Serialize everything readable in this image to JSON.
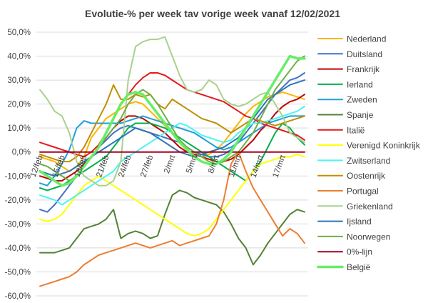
{
  "chart_data": {
    "type": "line",
    "title": "Evolutie-% per week tav vorige week vanaf 12/02/2021",
    "xlabel": "",
    "ylabel": "",
    "ylim": [
      -60,
      50
    ],
    "ytick_step": 10,
    "ytick_labels": [
      "50,0%",
      "40,0%",
      "30,0%",
      "20,0%",
      "10,0%",
      "0,0%",
      "-10,0%",
      "-20,0%",
      "-30,0%",
      "-40,0%",
      "-50,0%",
      "-60,0%"
    ],
    "x_count": 37,
    "x_ticks": [
      {
        "index": 0,
        "label": "12/feb"
      },
      {
        "index": 3,
        "label": "15/feb"
      },
      {
        "index": 6,
        "label": "18/feb"
      },
      {
        "index": 9,
        "label": "21/feb"
      },
      {
        "index": 12,
        "label": "24/feb"
      },
      {
        "index": 15,
        "label": "27/feb"
      },
      {
        "index": 18,
        "label": "2/mrt"
      },
      {
        "index": 21,
        "label": "5/mrt"
      },
      {
        "index": 24,
        "label": "8/mrt"
      },
      {
        "index": 27,
        "label": "11/mrt"
      },
      {
        "index": 30,
        "label": "14/mrt"
      },
      {
        "index": 33,
        "label": "17/mrt"
      }
    ],
    "grid": true,
    "legend_position": "right",
    "series": [
      {
        "name": "Nederland",
        "color": "#FFB400",
        "width": 2,
        "values": [
          -2,
          -3,
          -4,
          -6,
          -8,
          -6,
          -2,
          6,
          10,
          14,
          16,
          18,
          20,
          21,
          20,
          17,
          14,
          11,
          8,
          5,
          2,
          0,
          -2,
          -1,
          1,
          4,
          8,
          12,
          16,
          19,
          21,
          23,
          24,
          25,
          24,
          23,
          22
        ]
      },
      {
        "name": "Duitsland",
        "color": "#4472C4",
        "width": 2,
        "values": [
          -24,
          -25,
          -22,
          -18,
          -14,
          -10,
          -6,
          -2,
          2,
          5,
          8,
          10,
          11,
          10,
          9,
          8,
          7,
          6,
          5,
          4,
          2,
          0,
          -1,
          -2,
          -2,
          -1,
          1,
          4,
          8,
          12,
          16,
          20,
          24,
          27,
          30,
          31,
          33
        ]
      },
      {
        "name": "Frankrijk",
        "color": "#C00000",
        "width": 2,
        "values": [
          -10,
          -11,
          -12,
          -12,
          -10,
          -8,
          -5,
          -2,
          2,
          6,
          10,
          13,
          15,
          15,
          14,
          12,
          10,
          8,
          5,
          2,
          0,
          -1,
          -2,
          -3,
          -4,
          -4,
          -3,
          -1,
          2,
          5,
          9,
          12,
          16,
          19,
          21,
          22,
          24
        ]
      },
      {
        "name": "Ierland",
        "color": "#00B050",
        "width": 2,
        "values": [
          -15,
          -16,
          -15,
          -14,
          -12,
          -10,
          -8,
          -6,
          -4,
          -2,
          2,
          6,
          10,
          12,
          12,
          12,
          11,
          10,
          8,
          6,
          4,
          2,
          0,
          -2,
          -4,
          -6,
          -8,
          -10,
          -12,
          -8,
          -4,
          2,
          8,
          12,
          10,
          6,
          3
        ]
      },
      {
        "name": "Zweden",
        "color": "#1F9FD9",
        "width": 2,
        "values": [
          -13,
          -14,
          -10,
          -5,
          1,
          10,
          13,
          12,
          12,
          12,
          12,
          12,
          13,
          14,
          15,
          14,
          13,
          12,
          11,
          10,
          9,
          8,
          6,
          4,
          2,
          1,
          2,
          4,
          6,
          8,
          10,
          12,
          13,
          14,
          15,
          15,
          15
        ]
      },
      {
        "name": "Spanje",
        "color": "#548235",
        "width": 2,
        "values": [
          -42,
          -42,
          -42,
          -41,
          -40,
          -36,
          -32,
          -31,
          -30,
          -28,
          -24,
          -36,
          -34,
          -33,
          -34,
          -36,
          -35,
          -26,
          -18,
          -16,
          -17,
          -19,
          -20,
          -21,
          -22,
          -25,
          -30,
          -36,
          -40,
          -47,
          -43,
          -38,
          -34,
          -30,
          -26,
          -24,
          -25
        ]
      },
      {
        "name": "Italië",
        "color": "#E31A1C",
        "width": 2,
        "values": [
          4,
          3,
          2,
          1,
          0,
          -1,
          -2,
          0,
          3,
          8,
          14,
          20,
          24,
          28,
          31,
          33,
          33,
          32,
          30,
          28,
          26,
          25,
          24,
          23,
          22,
          21,
          19,
          17,
          15,
          14,
          12,
          11,
          10,
          9,
          8,
          7,
          5
        ]
      },
      {
        "name": "Verenigd Koninkrijk",
        "color": "#FFFF00",
        "width": 2,
        "values": [
          -28,
          -29,
          -28,
          -26,
          -22,
          -18,
          -14,
          -12,
          -10,
          -12,
          -14,
          -16,
          -18,
          -20,
          -22,
          -24,
          -26,
          -28,
          -30,
          -32,
          -34,
          -35,
          -34,
          -32,
          -28,
          -24,
          -20,
          -16,
          -12,
          -8,
          -5,
          -4,
          -3,
          -2,
          -2,
          -1,
          -2
        ]
      },
      {
        "name": "Zwitserland",
        "color": "#4EF3F3",
        "width": 2,
        "values": [
          -18,
          -19,
          -20,
          -22,
          -20,
          -18,
          -16,
          -14,
          -12,
          -10,
          -8,
          -4,
          -2,
          0,
          2,
          4,
          6,
          8,
          10,
          12,
          11,
          9,
          7,
          6,
          5,
          4,
          5,
          8,
          10,
          12,
          12,
          13,
          14,
          15,
          16,
          17,
          19
        ]
      },
      {
        "name": "Oostenrijk",
        "color": "#BF8F00",
        "width": 2,
        "values": [
          -1,
          -2,
          -3,
          -4,
          -4,
          -2,
          2,
          8,
          14,
          20,
          28,
          22,
          22,
          24,
          23,
          24,
          20,
          18,
          22,
          20,
          18,
          16,
          14,
          13,
          12,
          10,
          8,
          10,
          12,
          14,
          13,
          12,
          11,
          12,
          13,
          14,
          15
        ]
      },
      {
        "name": "Portugal",
        "color": "#ED7D31",
        "width": 2,
        "values": [
          -56,
          -55,
          -54,
          -53,
          -52,
          -50,
          -47,
          -45,
          -43,
          -42,
          -41,
          -40,
          -39,
          -38,
          -39,
          -40,
          -39,
          -38,
          -37,
          -39,
          -38,
          -37,
          -36,
          -35,
          -30,
          -20,
          -5,
          0,
          -8,
          -15,
          -20,
          -25,
          -30,
          -35,
          -32,
          -34,
          -38
        ]
      },
      {
        "name": "Griekenland",
        "color": "#A9D18E",
        "width": 2,
        "values": [
          26,
          22,
          17,
          15,
          8,
          -4,
          -10,
          -12,
          -14,
          -14,
          -12,
          -4,
          30,
          44,
          46,
          47,
          47,
          48,
          40,
          32,
          26,
          25,
          26,
          30,
          28,
          22,
          20,
          19,
          20,
          22,
          24,
          25,
          20,
          15,
          8,
          6,
          4
        ]
      },
      {
        "name": "Ijsland",
        "color": "#2E75B6",
        "width": 2,
        "values": [
          -8,
          -9,
          -10,
          -9,
          -8,
          -6,
          -4,
          -2,
          0,
          2,
          4,
          6,
          8,
          10,
          9,
          8,
          6,
          4,
          2,
          0,
          -1,
          -2,
          -1,
          0,
          1,
          2,
          4,
          6,
          10,
          14,
          18,
          22,
          24,
          26,
          28,
          29,
          30
        ]
      },
      {
        "name": "Noorwegen",
        "color": "#70AD47",
        "width": 2,
        "values": [
          -5,
          -6,
          -8,
          -10,
          -12,
          -10,
          -6,
          -2,
          2,
          6,
          10,
          14,
          20,
          24,
          26,
          24,
          20,
          15,
          10,
          5,
          2,
          0,
          -2,
          -4,
          -5,
          -4,
          -2,
          0,
          4,
          8,
          14,
          20,
          26,
          30,
          34,
          38,
          40
        ]
      },
      {
        "name": "0%-lijn",
        "color": "#A50021",
        "width": 2,
        "values": [
          0,
          0,
          0,
          0,
          0,
          0,
          0,
          0,
          0,
          0,
          0,
          0,
          0,
          0,
          0,
          0,
          0,
          0,
          0,
          0,
          0,
          0,
          0,
          0,
          0,
          0,
          0,
          0,
          0,
          0,
          0,
          0,
          0,
          0,
          0,
          0,
          0
        ]
      },
      {
        "name": "België",
        "color": "#66EE66",
        "width": 3.5,
        "values": [
          -8,
          -10,
          -12,
          -14,
          -13,
          -10,
          -6,
          -2,
          2,
          8,
          14,
          20,
          24,
          25,
          24,
          20,
          16,
          12,
          8,
          4,
          1,
          -2,
          -4,
          -5,
          -5,
          -3,
          0,
          5,
          10,
          15,
          20,
          25,
          30,
          35,
          40,
          39,
          39
        ]
      }
    ]
  }
}
